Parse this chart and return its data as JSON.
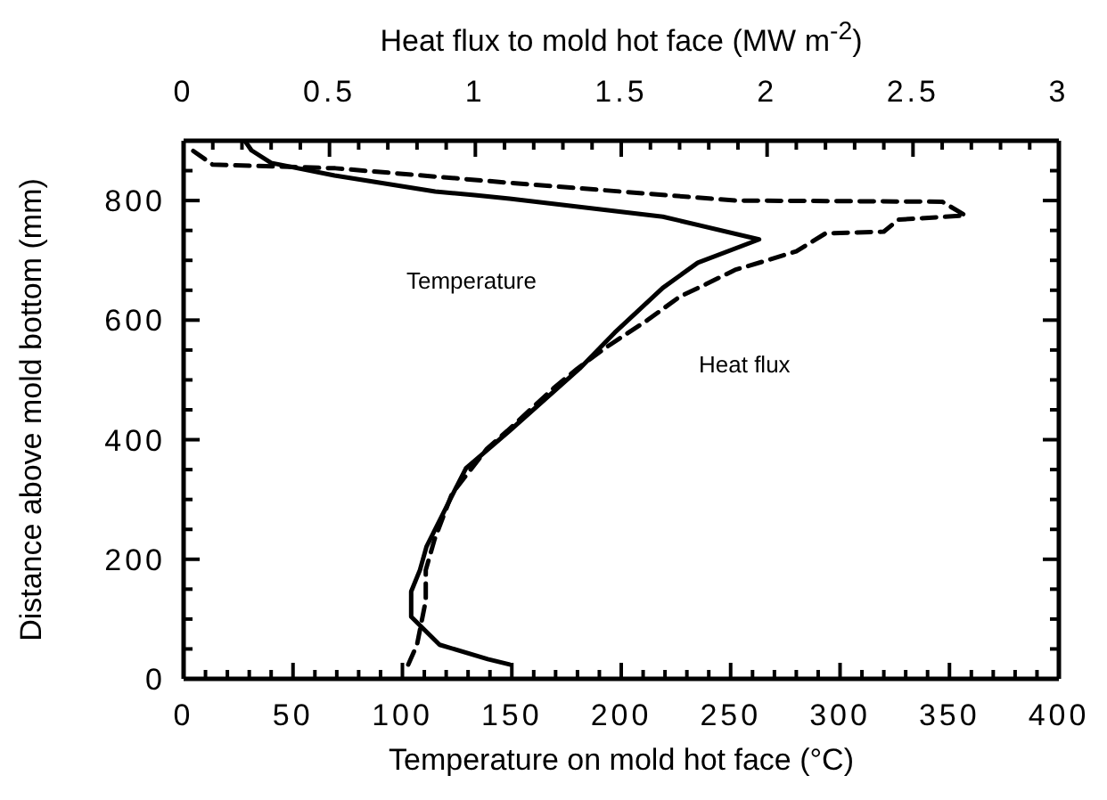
{
  "chart_data": {
    "type": "line",
    "xlabel": "Temperature on mold hot face (°C)",
    "x2label": "Heat flux to mold hot face (MW m$^{-2}$)",
    "ylabel": "Distance above mold bottom (mm)",
    "marker": "none",
    "xlim": [
      0,
      400
    ],
    "xticks": [
      0,
      {
        "value": 10,
        "label": null
      },
      {
        "value": 20,
        "label": null
      },
      {
        "value": 30,
        "label": null
      },
      {
        "value": 40,
        "label": null
      },
      50,
      {
        "value": 60,
        "label": null
      },
      {
        "value": 70,
        "label": null
      },
      {
        "value": 80,
        "label": null
      },
      {
        "value": 90,
        "label": null
      },
      100,
      {
        "value": 110,
        "label": null
      },
      {
        "value": 120,
        "label": null
      },
      {
        "value": 130,
        "label": null
      },
      {
        "value": 140,
        "label": null
      },
      150,
      {
        "value": 160,
        "label": null
      },
      {
        "value": 170,
        "label": null
      },
      {
        "value": 180,
        "label": null
      },
      {
        "value": 190,
        "label": null
      },
      200,
      {
        "value": 210,
        "label": null
      },
      {
        "value": 220,
        "label": null
      },
      {
        "value": 230,
        "label": null
      },
      {
        "value": 240,
        "label": null
      },
      250,
      {
        "value": 260,
        "label": null
      },
      {
        "value": 270,
        "label": null
      },
      {
        "value": 280,
        "label": null
      },
      {
        "value": 290,
        "label": null
      },
      300,
      {
        "value": 310,
        "label": null
      },
      {
        "value": 320,
        "label": null
      },
      {
        "value": 330,
        "label": null
      },
      {
        "value": 340,
        "label": null
      },
      350,
      {
        "value": 360,
        "label": null
      },
      {
        "value": 370,
        "label": null
      },
      {
        "value": 380,
        "label": null
      },
      {
        "value": 390,
        "label": null
      },
      400
    ],
    "x2lim": [
      0,
      3
    ],
    "x2ticks": [
      0,
      {
        "value": 0.1,
        "label": null
      },
      {
        "value": 0.2,
        "label": null
      },
      {
        "value": 0.3,
        "label": null
      },
      {
        "value": 0.4,
        "label": null
      },
      0.5,
      {
        "value": 0.6,
        "label": null
      },
      {
        "value": 0.7,
        "label": null
      },
      {
        "value": 0.8,
        "label": null
      },
      {
        "value": 0.9,
        "label": null
      },
      1,
      {
        "value": 1.1,
        "label": null
      },
      {
        "value": 1.2,
        "label": null
      },
      {
        "value": 1.3,
        "label": null
      },
      {
        "value": 1.4,
        "label": null
      },
      1.5,
      {
        "value": 1.6,
        "label": null
      },
      {
        "value": 1.7,
        "label": null
      },
      {
        "value": 1.8,
        "label": null
      },
      {
        "value": 1.9,
        "label": null
      },
      2,
      {
        "value": 2.1,
        "label": null
      },
      {
        "value": 2.2,
        "label": null
      },
      {
        "value": 2.3,
        "label": null
      },
      {
        "value": 2.4,
        "label": null
      },
      2.5,
      {
        "value": 2.6,
        "label": null
      },
      {
        "value": 2.7,
        "label": null
      },
      {
        "value": 2.8,
        "label": null
      },
      {
        "value": 2.9,
        "label": null
      },
      3
    ],
    "ylim": [
      0,
      900
    ],
    "yticks": [
      0,
      {
        "value": 50,
        "label": null
      },
      200,
      {
        "value": 100,
        "label": null
      },
      {
        "value": 150,
        "label": null
      },
      {
        "value": 250,
        "label": null
      },
      {
        "value": 300,
        "label": null
      },
      {
        "value": 350,
        "label": null
      },
      400,
      {
        "value": 450,
        "label": null
      },
      {
        "value": 500,
        "label": null
      },
      {
        "value": 550,
        "label": null
      },
      600,
      {
        "value": 650,
        "label": null
      },
      {
        "value": 700,
        "label": null
      },
      {
        "value": 750,
        "label": null
      },
      800,
      {
        "value": 850,
        "label": null
      }
    ],
    "series": [
      {
        "name": "Temperature",
        "color": "#000000",
        "line_style": "solid",
        "x": [
          149,
          139,
          117,
          104,
          104,
          108,
          111,
          124,
          129,
          149,
          181,
          197,
          219,
          235,
          263,
          219,
          149,
          133,
          115,
          69,
          40,
          31,
          28
        ],
        "values": [
          24,
          33,
          57,
          104,
          146,
          182,
          221,
          316,
          352,
          415,
          519,
          579,
          654,
          696,
          735,
          773,
          803,
          809,
          815,
          842,
          863,
          884,
          900
        ]
      },
      {
        "name": "Heat flux",
        "color": "#000000",
        "line_style": "dashed",
        "axis": "x2",
        "x": [
          0.77,
          0.8,
          0.83,
          0.83,
          0.86,
          0.92,
          1.04,
          1.11,
          1.27,
          1.35,
          1.45,
          1.59,
          1.7,
          1.79,
          1.89,
          2.0,
          2.1,
          2.2,
          2.4,
          2.45,
          2.68,
          2.6,
          1.89,
          1.11,
          0.52,
          0.1,
          0.03
        ],
        "values": [
          24,
          57,
          131,
          182,
          233,
          310,
          385,
          415,
          487,
          519,
          555,
          600,
          639,
          660,
          684,
          700,
          715,
          745,
          748,
          768,
          775,
          798,
          800,
          830,
          854,
          860,
          884
        ]
      }
    ]
  }
}
